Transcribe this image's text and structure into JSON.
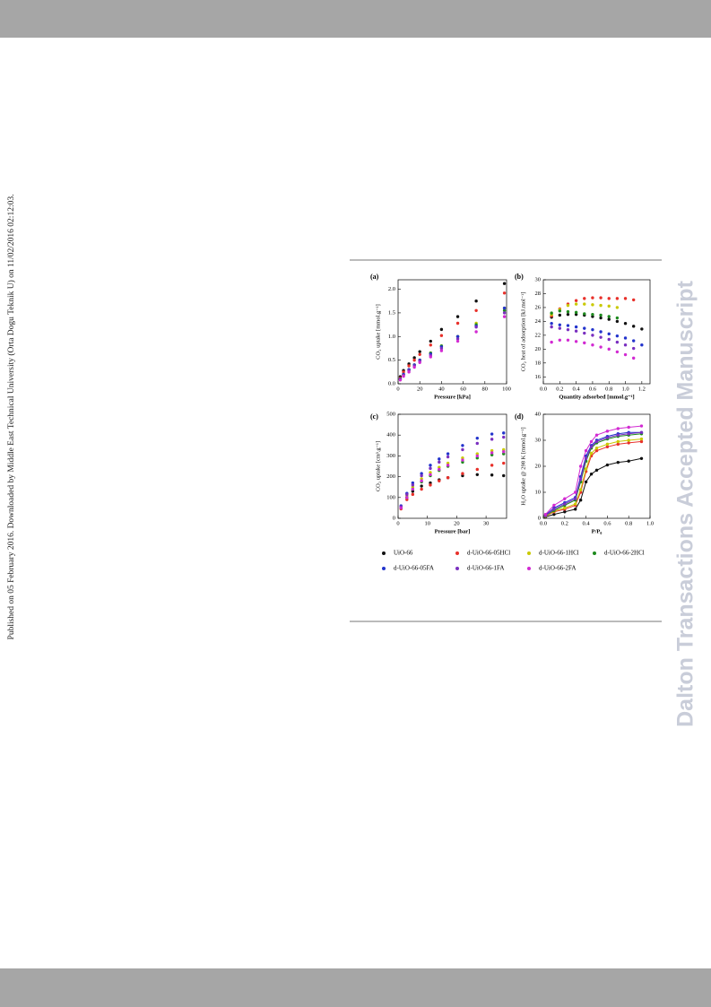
{
  "side_note": "Published on 05 February 2016. Downloaded by Middle East Technical University (Orta Dogu Teknik U) on 11/02/2016 02:12:03.",
  "watermark": "Dalton Transactions Accepted Manuscript",
  "figure": {
    "legend": [
      {
        "name": "UiO-66",
        "color": "#111111"
      },
      {
        "name": "d-UiO-66-05HCl",
        "color": "#e8302a"
      },
      {
        "name": "d-UiO-66-1HCl",
        "color": "#c9c900"
      },
      {
        "name": "d-UiO-66-2HCl",
        "color": "#1d8a1d"
      },
      {
        "name": "d-UiO-66-05FA",
        "color": "#2233cc"
      },
      {
        "name": "d-UiO-66-1FA",
        "color": "#7a2fc0"
      },
      {
        "name": "d-UiO-66-2FA",
        "color": "#d22ad2"
      }
    ],
    "panels": [
      {
        "label": "(a)",
        "type": "scatter",
        "x_label": "Pressure [kPa]",
        "y_label": "CO₂ uptake [mmol.g⁻¹]",
        "xlim": [
          0,
          100
        ],
        "xticks": [
          0,
          20,
          40,
          60,
          80,
          100
        ],
        "ylim": [
          0,
          2.2
        ],
        "yticks": [
          {
            "value": 0,
            "label": "0.0"
          },
          0.5,
          {
            "value": 1,
            "label": "1.0"
          },
          1.5,
          {
            "value": 2,
            "label": "2.0"
          }
        ],
        "x": [
          2,
          5,
          10,
          15,
          20,
          30,
          40,
          55,
          72,
          98
        ],
        "series": [
          {
            "values": [
              0.15,
              0.28,
              0.42,
              0.55,
              0.68,
              0.9,
              1.15,
              1.42,
              1.75,
              2.12
            ]
          },
          {
            "values": [
              0.12,
              0.25,
              0.38,
              0.5,
              0.62,
              0.82,
              1.02,
              1.28,
              1.55,
              1.92
            ]
          },
          {
            "values": [
              0.1,
              0.2,
              0.3,
              0.4,
              0.5,
              0.65,
              0.8,
              1.0,
              1.28,
              1.6
            ]
          },
          {
            "values": [
              0.1,
              0.2,
              0.3,
              0.4,
              0.5,
              0.65,
              0.8,
              1.0,
              1.25,
              1.55
            ]
          },
          {
            "values": [
              0.1,
              0.2,
              0.3,
              0.4,
              0.5,
              0.63,
              0.78,
              1.0,
              1.22,
              1.6
            ]
          },
          {
            "values": [
              0.09,
              0.18,
              0.28,
              0.38,
              0.48,
              0.6,
              0.75,
              0.95,
              1.2,
              1.5
            ]
          },
          {
            "values": [
              0.08,
              0.16,
              0.25,
              0.35,
              0.45,
              0.57,
              0.7,
              0.9,
              1.1,
              1.42
            ]
          }
        ]
      },
      {
        "label": "(b)",
        "type": "scatter",
        "x_label": "Quantity adsorbed [mmol.g⁻¹]",
        "y_label": "CO₂ heat of adsorption [kJ.mol⁻¹]",
        "xlim": [
          0,
          1.3
        ],
        "xticks": [
          {
            "value": 0,
            "label": "0.0"
          },
          0.2,
          0.4,
          0.6,
          0.8,
          {
            "value": 1,
            "label": "1.0"
          },
          1.2
        ],
        "ylim": [
          15,
          30
        ],
        "yticks": [
          16,
          18,
          20,
          22,
          24,
          26,
          28,
          30
        ],
        "x": [
          0.1,
          0.2,
          0.3,
          0.4,
          0.5,
          0.6,
          0.7,
          0.8,
          0.9,
          1.0,
          1.1,
          1.2
        ],
        "series": [
          {
            "values": [
              24.6,
              24.9,
              25,
              25,
              24.9,
              24.7,
              24.5,
              24.3,
              24,
              23.7,
              23.3,
              22.9
            ]
          },
          {
            "values": [
              24.8,
              25.8,
              26.5,
              27,
              27.3,
              27.4,
              27.4,
              27.3,
              27.3,
              27.3,
              27.1,
              null
            ]
          },
          {
            "values": [
              25,
              25.7,
              26.3,
              26.5,
              26.5,
              26.4,
              26.3,
              26.2,
              26,
              null,
              null,
              null
            ]
          },
          {
            "values": [
              25.2,
              25.5,
              25.4,
              25.3,
              25.1,
              25,
              24.9,
              24.7,
              24.5,
              null,
              null,
              null
            ]
          },
          {
            "values": [
              23.7,
              23.5,
              23.4,
              23.2,
              23,
              22.8,
              22.5,
              22.2,
              21.9,
              21.6,
              21.2,
              20.6
            ]
          },
          {
            "values": [
              23.2,
              23,
              22.8,
              22.6,
              22.3,
              22,
              21.7,
              21.4,
              21,
              20.6,
              20.1,
              null
            ]
          },
          {
            "values": [
              21,
              21.3,
              21.3,
              21.1,
              20.9,
              20.6,
              20.3,
              20,
              19.6,
              19.2,
              18.7,
              null
            ]
          }
        ]
      },
      {
        "label": "(c)",
        "type": "scatter",
        "x_label": "Pressure [bar]",
        "y_label": "CO₂ uptake [cm³.g⁻¹]",
        "xlim": [
          0,
          37
        ],
        "xticks": [
          0,
          10,
          20,
          30
        ],
        "ylim": [
          0,
          500
        ],
        "yticks": [
          0,
          100,
          200,
          300,
          400,
          500
        ],
        "x": [
          1,
          3,
          5,
          8,
          11,
          14,
          17,
          22,
          27,
          32,
          36
        ],
        "series": [
          {
            "values": [
              50,
              100,
              130,
              155,
              170,
              185,
              195,
              205,
              210,
              208,
              205
            ]
          },
          {
            "values": [
              45,
              90,
              115,
              140,
              160,
              180,
              195,
              215,
              235,
              255,
              265
            ]
          },
          {
            "values": [
              55,
              110,
              150,
              190,
              220,
              245,
              265,
              290,
              310,
              325,
              330
            ]
          },
          {
            "values": [
              50,
              100,
              140,
              175,
              205,
              230,
              250,
              270,
              290,
              305,
              310
            ]
          },
          {
            "values": [
              60,
              120,
              170,
              215,
              255,
              285,
              310,
              350,
              385,
              405,
              410
            ]
          },
          {
            "values": [
              55,
              115,
              160,
              205,
              240,
              270,
              295,
              330,
              360,
              380,
              390
            ]
          },
          {
            "values": [
              50,
              100,
              140,
              180,
              210,
              235,
              255,
              280,
              300,
              315,
              320
            ]
          }
        ]
      },
      {
        "label": "(d)",
        "type": "line",
        "x_label": "P/P₀",
        "y_label": "H₂O uptake @ 298 K [mmol.g⁻¹]",
        "xlim": [
          0,
          1
        ],
        "xticks": [
          {
            "value": 0,
            "label": "0.0"
          },
          0.2,
          0.4,
          0.6,
          0.8,
          {
            "value": 1,
            "label": "1.0"
          }
        ],
        "ylim": [
          0,
          40
        ],
        "yticks": [
          0,
          10,
          20,
          30,
          40
        ],
        "x": [
          0.02,
          0.1,
          0.2,
          0.3,
          0.35,
          0.4,
          0.45,
          0.5,
          0.6,
          0.7,
          0.8,
          0.92
        ],
        "series": [
          {
            "values": [
              0.5,
              1.5,
              2.5,
              3.5,
              7,
              14,
              17,
              18.5,
              20.5,
              21.5,
              22,
              23
            ]
          },
          {
            "values": [
              0.8,
              2.5,
              3.5,
              5,
              10,
              18,
              24,
              26,
              27.5,
              28.5,
              29,
              29.5
            ]
          },
          {
            "values": [
              0.8,
              2.8,
              4,
              5.5,
              11,
              19,
              25,
              27,
              28.5,
              29.5,
              30,
              30.5
            ]
          },
          {
            "values": [
              1,
              3,
              5,
              7,
              14,
              22,
              27,
              29,
              30.5,
              31.5,
              32,
              32.5
            ]
          },
          {
            "values": [
              1.2,
              4,
              6,
              8,
              16,
              24,
              28,
              30,
              31.5,
              32.5,
              33,
              33
            ]
          },
          {
            "values": [
              1,
              3.5,
              5.5,
              7.5,
              15,
              23,
              27.5,
              29.5,
              31,
              32,
              32.5,
              33
            ]
          },
          {
            "values": [
              1.5,
              5,
              7.5,
              10,
              20,
              26,
              29.5,
              32,
              33.5,
              34.5,
              35,
              35.5
            ]
          }
        ]
      }
    ]
  }
}
